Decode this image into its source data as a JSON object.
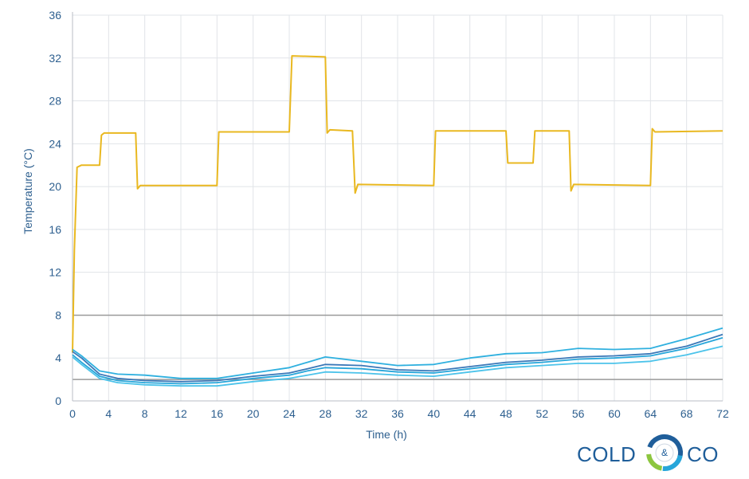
{
  "chart_data": {
    "type": "line",
    "title": "",
    "xlabel": "Time (h)",
    "ylabel": "Temperature (°C)",
    "xlim": [
      0,
      72
    ],
    "ylim": [
      0,
      36
    ],
    "x_ticks": [
      0,
      4,
      8,
      12,
      16,
      20,
      24,
      28,
      32,
      36,
      40,
      44,
      48,
      52,
      56,
      60,
      64,
      68,
      72
    ],
    "y_ticks": [
      0,
      4,
      8,
      12,
      16,
      20,
      24,
      28,
      32,
      36
    ],
    "grid": true,
    "legend": "none",
    "reference_lines": [
      {
        "y": 8,
        "color": "#9a9a9a"
      },
      {
        "y": 2,
        "color": "#9a9a9a"
      }
    ],
    "series": [
      {
        "color": "#e9b820",
        "points": [
          [
            0,
            4.5
          ],
          [
            0.2,
            14
          ],
          [
            0.5,
            21.8
          ],
          [
            1,
            22
          ],
          [
            3,
            22
          ],
          [
            3.2,
            24.8
          ],
          [
            3.5,
            25
          ],
          [
            7,
            25
          ],
          [
            7.2,
            19.8
          ],
          [
            7.5,
            20.1
          ],
          [
            16,
            20.1
          ],
          [
            16.2,
            25.1
          ],
          [
            20,
            25.1
          ],
          [
            24,
            25.1
          ],
          [
            24.3,
            32.2
          ],
          [
            28,
            32.1
          ],
          [
            28.2,
            25
          ],
          [
            28.5,
            25.3
          ],
          [
            31,
            25.2
          ],
          [
            31.3,
            19.4
          ],
          [
            31.6,
            20.2
          ],
          [
            40,
            20.1
          ],
          [
            40.2,
            25.2
          ],
          [
            48,
            25.2
          ],
          [
            48.2,
            22.2
          ],
          [
            51,
            22.2
          ],
          [
            51.2,
            25.2
          ],
          [
            55,
            25.2
          ],
          [
            55.2,
            19.6
          ],
          [
            55.5,
            20.2
          ],
          [
            64,
            20.1
          ],
          [
            64.2,
            25.4
          ],
          [
            64.5,
            25.1
          ],
          [
            72,
            25.2
          ]
        ]
      },
      {
        "color": "#2fb0df",
        "points": [
          [
            0,
            4.8
          ],
          [
            1,
            4.2
          ],
          [
            3,
            2.8
          ],
          [
            5,
            2.5
          ],
          [
            8,
            2.4
          ],
          [
            12,
            2.1
          ],
          [
            16,
            2.1
          ],
          [
            20,
            2.6
          ],
          [
            24,
            3.1
          ],
          [
            26,
            3.6
          ],
          [
            28,
            4.1
          ],
          [
            32,
            3.7
          ],
          [
            36,
            3.3
          ],
          [
            40,
            3.4
          ],
          [
            44,
            4
          ],
          [
            48,
            4.4
          ],
          [
            52,
            4.5
          ],
          [
            56,
            4.9
          ],
          [
            60,
            4.8
          ],
          [
            64,
            4.9
          ],
          [
            68,
            5.8
          ],
          [
            72,
            6.8
          ]
        ]
      },
      {
        "color": "#3a78b8",
        "points": [
          [
            0,
            4.6
          ],
          [
            1,
            4
          ],
          [
            3,
            2.5
          ],
          [
            5,
            2.1
          ],
          [
            8,
            1.9
          ],
          [
            12,
            1.8
          ],
          [
            16,
            1.9
          ],
          [
            20,
            2.3
          ],
          [
            24,
            2.6
          ],
          [
            26,
            3
          ],
          [
            28,
            3.4
          ],
          [
            32,
            3.3
          ],
          [
            36,
            2.9
          ],
          [
            40,
            2.8
          ],
          [
            44,
            3.2
          ],
          [
            48,
            3.6
          ],
          [
            52,
            3.8
          ],
          [
            56,
            4.1
          ],
          [
            60,
            4.2
          ],
          [
            64,
            4.4
          ],
          [
            68,
            5.1
          ],
          [
            72,
            6.2
          ]
        ]
      },
      {
        "color": "#27a6da",
        "points": [
          [
            0,
            4.3
          ],
          [
            1,
            3.6
          ],
          [
            3,
            2.3
          ],
          [
            5,
            1.9
          ],
          [
            8,
            1.7
          ],
          [
            12,
            1.6
          ],
          [
            16,
            1.7
          ],
          [
            20,
            2.1
          ],
          [
            24,
            2.4
          ],
          [
            26,
            2.8
          ],
          [
            28,
            3.1
          ],
          [
            32,
            3
          ],
          [
            36,
            2.7
          ],
          [
            40,
            2.6
          ],
          [
            44,
            3
          ],
          [
            48,
            3.4
          ],
          [
            52,
            3.6
          ],
          [
            56,
            3.9
          ],
          [
            60,
            4
          ],
          [
            64,
            4.2
          ],
          [
            68,
            4.9
          ],
          [
            72,
            5.9
          ]
        ]
      },
      {
        "color": "#4cc3ea",
        "points": [
          [
            0,
            4.1
          ],
          [
            1,
            3.4
          ],
          [
            3,
            2.1
          ],
          [
            5,
            1.7
          ],
          [
            8,
            1.5
          ],
          [
            12,
            1.4
          ],
          [
            16,
            1.4
          ],
          [
            20,
            1.8
          ],
          [
            24,
            2.1
          ],
          [
            26,
            2.4
          ],
          [
            28,
            2.7
          ],
          [
            32,
            2.6
          ],
          [
            36,
            2.4
          ],
          [
            40,
            2.3
          ],
          [
            44,
            2.7
          ],
          [
            48,
            3.1
          ],
          [
            52,
            3.3
          ],
          [
            56,
            3.5
          ],
          [
            60,
            3.5
          ],
          [
            64,
            3.7
          ],
          [
            68,
            4.3
          ],
          [
            72,
            5.1
          ]
        ]
      }
    ]
  },
  "logo": {
    "left_word": "COLD",
    "amp": "&",
    "right_word": "CO",
    "colors": {
      "text": "#1f5e9a",
      "ring_blue": "#1f5e9a",
      "ring_teal": "#27a6da",
      "ring_green": "#8cc63f"
    }
  }
}
